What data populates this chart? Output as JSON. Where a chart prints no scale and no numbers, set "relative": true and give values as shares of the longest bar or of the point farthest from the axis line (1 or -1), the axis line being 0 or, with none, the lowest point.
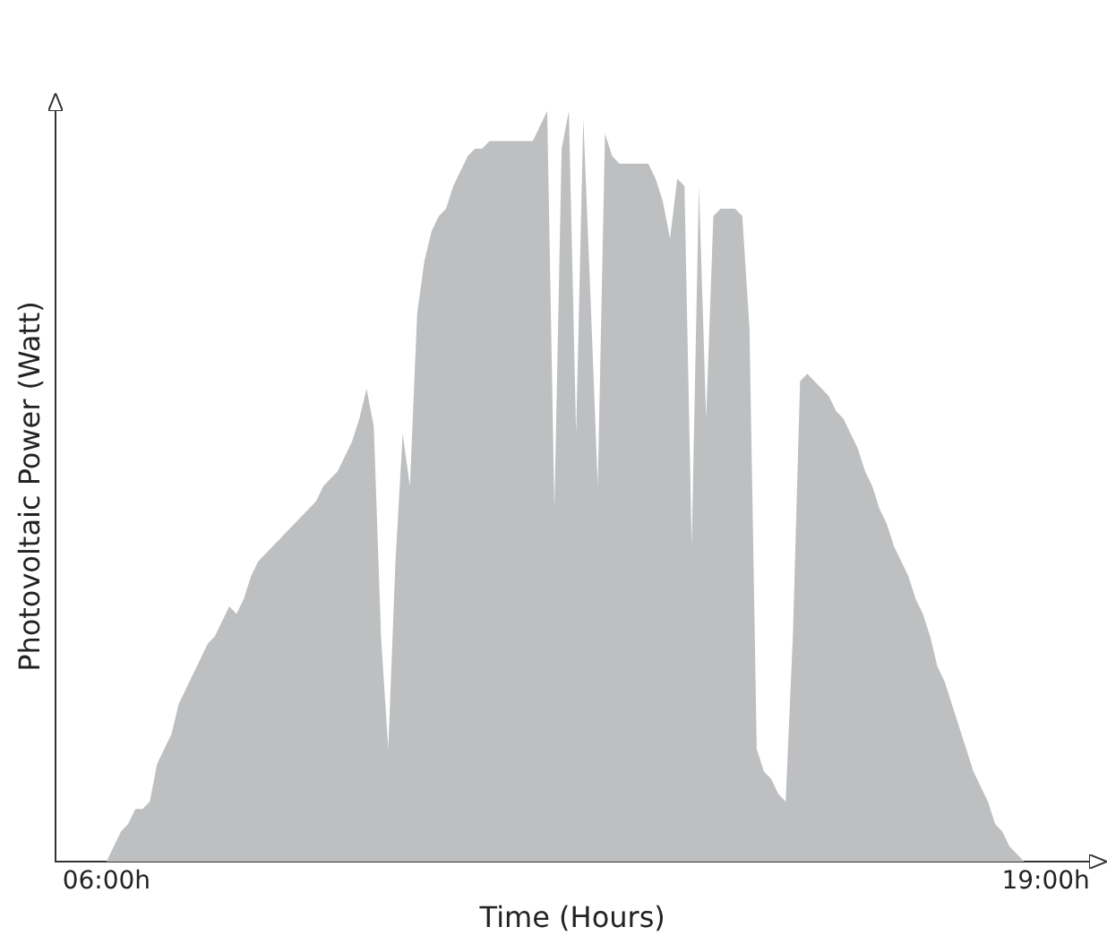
{
  "chart_data": {
    "type": "area",
    "xlabel": "Time (Hours)",
    "ylabel": "Photovoltaic Power (Watt)",
    "relative": true,
    "color": "#bdbfc1",
    "legend": false,
    "categories": [
      null,
      null,
      null,
      null,
      null,
      null,
      null,
      "06:00h",
      null,
      null,
      null,
      null,
      null,
      null,
      null,
      null,
      null,
      null,
      null,
      null,
      null,
      null,
      null,
      null,
      null,
      null,
      null,
      null,
      null,
      null,
      null,
      null,
      null,
      null,
      null,
      null,
      null,
      null,
      null,
      null,
      null,
      null,
      null,
      null,
      null,
      null,
      null,
      null,
      null,
      null,
      null,
      null,
      null,
      null,
      null,
      null,
      null,
      null,
      null,
      null,
      null,
      null,
      null,
      null,
      null,
      null,
      null,
      null,
      null,
      null,
      null,
      null,
      null,
      null,
      null,
      null,
      null,
      null,
      null,
      null,
      null,
      null,
      null,
      null,
      null,
      null,
      null,
      null,
      null,
      null,
      null,
      null,
      null,
      null,
      null,
      null,
      null,
      null,
      null,
      null,
      null,
      null,
      null,
      null,
      null,
      null,
      null,
      null,
      null,
      null,
      null,
      null,
      null,
      null,
      null,
      null,
      null,
      null,
      null,
      null,
      null,
      null,
      null,
      null,
      null,
      null,
      null,
      null,
      null,
      null,
      null,
      null,
      null,
      null,
      null,
      null,
      null,
      "19:00h",
      null,
      null,
      null,
      null,
      null,
      null
    ],
    "values": [
      null,
      null,
      null,
      null,
      null,
      null,
      null,
      0,
      0.02,
      0.04,
      0.05,
      0.07,
      0.07,
      0.08,
      0.13,
      0.15,
      0.17,
      0.21,
      0.23,
      0.25,
      0.27,
      0.29,
      0.3,
      0.32,
      0.34,
      0.33,
      0.35,
      0.38,
      0.4,
      0.41,
      0.42,
      0.43,
      0.44,
      0.45,
      0.46,
      0.47,
      0.48,
      0.5,
      0.51,
      0.52,
      0.54,
      0.56,
      0.59,
      0.63,
      0.58,
      0.3,
      0.15,
      0.4,
      0.57,
      0.5,
      0.73,
      0.8,
      0.84,
      0.86,
      0.87,
      0.9,
      0.92,
      0.94,
      0.95,
      0.95,
      0.96,
      0.96,
      0.96,
      0.96,
      0.96,
      0.96,
      0.96,
      0.98,
      1.0,
      0.47,
      0.95,
      1.0,
      0.57,
      0.99,
      0.75,
      0.5,
      0.97,
      0.94,
      0.93,
      0.93,
      0.93,
      0.93,
      0.93,
      0.91,
      0.88,
      0.83,
      0.91,
      0.9,
      0.42,
      0.9,
      0.59,
      0.86,
      0.87,
      0.87,
      0.87,
      0.86,
      0.71,
      0.15,
      0.12,
      0.11,
      0.09,
      0.08,
      0.3,
      0.64,
      0.65,
      0.64,
      0.63,
      0.62,
      0.6,
      0.59,
      0.57,
      0.55,
      0.52,
      0.5,
      0.47,
      0.45,
      0.42,
      0.4,
      0.38,
      0.35,
      0.33,
      0.3,
      0.26,
      0.24,
      0.21,
      0.18,
      0.15,
      0.12,
      0.1,
      0.08,
      0.05,
      0.04,
      0.02,
      0.01,
      0,
      null,
      null,
      null,
      null,
      null,
      null,
      null,
      null,
      null
    ]
  }
}
